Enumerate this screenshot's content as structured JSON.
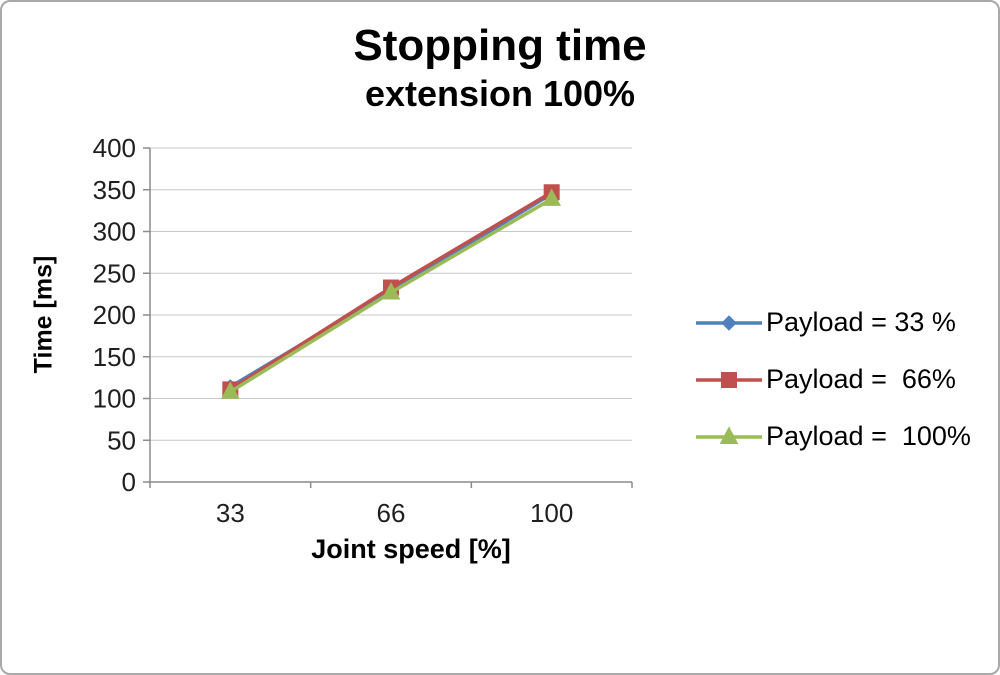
{
  "header": {
    "title": "Stopping time",
    "subtitle": "extension 100%"
  },
  "chart_data": {
    "type": "line",
    "title": "Stopping time",
    "subtitle": "extension 100%",
    "xlabel": "Joint speed [%]",
    "ylabel": "Time [ms]",
    "categories": [
      33,
      66,
      100
    ],
    "series": [
      {
        "name": "Payload = 33 %",
        "color": "#4f81bd",
        "marker": "diamond",
        "values": [
          114,
          229,
          345
        ]
      },
      {
        "name": "Payload =  66%",
        "color": "#c0504d",
        "marker": "square",
        "values": [
          111,
          233,
          347
        ]
      },
      {
        "name": "Payload =  100%",
        "color": "#9bbb59",
        "marker": "triangle",
        "values": [
          108,
          227,
          339
        ]
      }
    ],
    "ylim": [
      0,
      400
    ],
    "ytick_step": 50,
    "yticks": [
      0,
      50,
      100,
      150,
      200,
      250,
      300,
      350,
      400
    ],
    "grid": true,
    "legend_position": "right",
    "colors": {
      "gridline": "#c9c9c9",
      "axis": "#8c8c8c",
      "tick_text": "#1f1f1f"
    }
  }
}
